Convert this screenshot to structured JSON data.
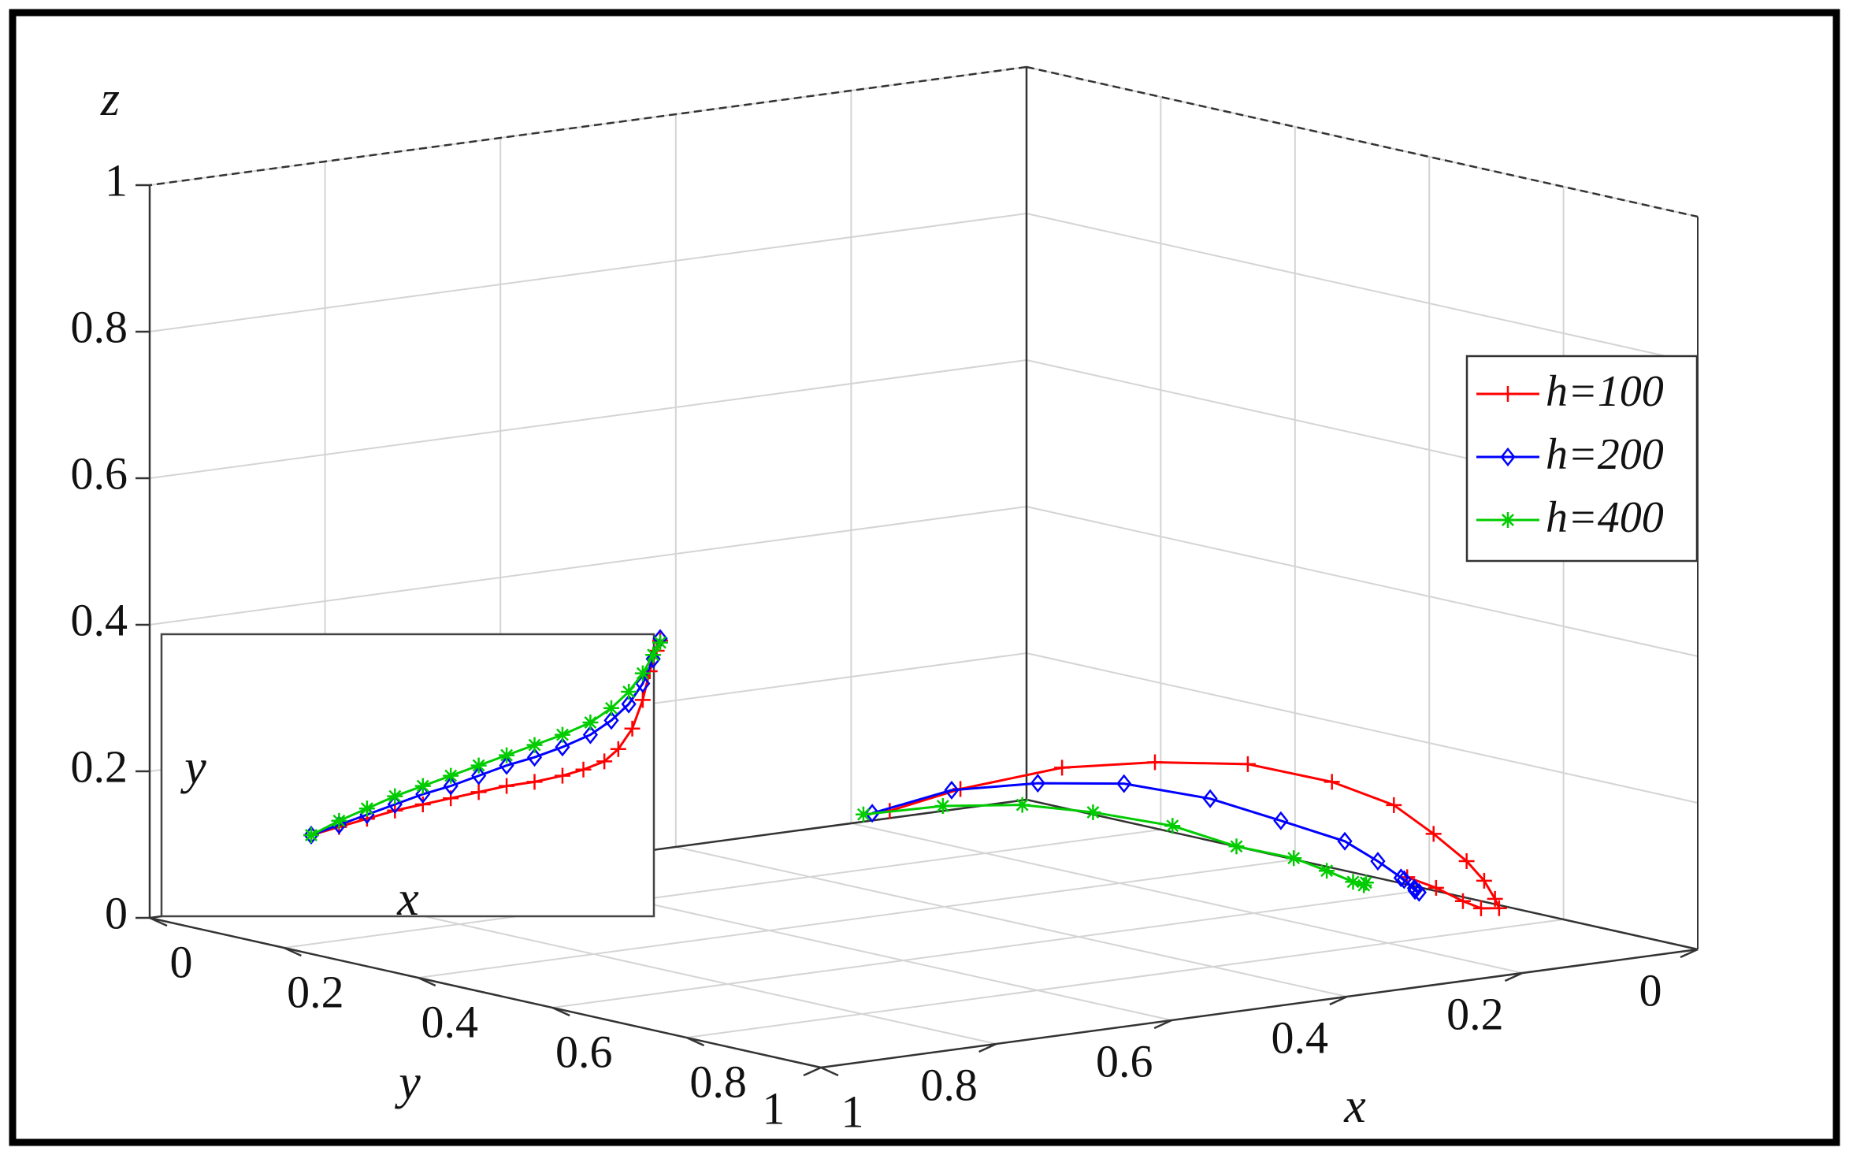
{
  "chart_data": {
    "type": "line",
    "projection": "3d",
    "title": "",
    "xlabel": "x",
    "ylabel": "y",
    "zlabel": "z",
    "xlim": [
      0,
      1
    ],
    "ylim": [
      0,
      1
    ],
    "zlim": [
      0,
      1
    ],
    "grid": true,
    "legend_placement": "right",
    "x_ticks": [
      "0",
      "0.2",
      "0.4",
      "0.6",
      "0.8",
      "1"
    ],
    "y_ticks": [
      "0",
      "0.2",
      "0.4",
      "0.6",
      "0.8",
      "1"
    ],
    "z_ticks": [
      "0",
      "0.2",
      "0.4",
      "0.6",
      "0.8",
      "1"
    ],
    "series": [
      {
        "name": "h=100",
        "color": "#ff0000",
        "marker": "plus",
        "x": [
          0.58,
          0.62,
          0.68,
          0.74,
          0.8,
          0.86,
          0.9,
          0.92,
          0.93,
          0.93,
          0.92,
          0.9,
          0.86,
          0.82,
          0.78,
          0.75
        ],
        "y": [
          0.6,
          0.55,
          0.48,
          0.42,
          0.36,
          0.31,
          0.27,
          0.24,
          0.21,
          0.19,
          0.17,
          0.15,
          0.14,
          0.13,
          0.13,
          0.14
        ],
        "z": [
          0.2,
          0.23,
          0.26,
          0.27,
          0.27,
          0.25,
          0.22,
          0.18,
          0.14,
          0.11,
          0.08,
          0.06,
          0.05,
          0.05,
          0.06,
          0.07
        ]
      },
      {
        "name": "h=200",
        "color": "#0000ff",
        "marker": "diamond",
        "x": [
          0.58,
          0.62,
          0.67,
          0.72,
          0.77,
          0.81,
          0.84,
          0.85,
          0.85,
          0.84,
          0.82,
          0.8,
          0.78
        ],
        "y": [
          0.62,
          0.56,
          0.5,
          0.44,
          0.38,
          0.33,
          0.28,
          0.25,
          0.22,
          0.2,
          0.18,
          0.17,
          0.17
        ],
        "z": [
          0.2,
          0.23,
          0.24,
          0.24,
          0.22,
          0.19,
          0.16,
          0.13,
          0.1,
          0.08,
          0.07,
          0.07,
          0.08
        ]
      },
      {
        "name": "h=400",
        "color": "#00cc00",
        "marker": "star",
        "x": [
          0.58,
          0.62,
          0.66,
          0.7,
          0.74,
          0.77,
          0.79,
          0.8,
          0.8,
          0.79,
          0.78
        ],
        "y": [
          0.63,
          0.57,
          0.51,
          0.46,
          0.4,
          0.35,
          0.3,
          0.27,
          0.24,
          0.22,
          0.21
        ],
        "z": [
          0.2,
          0.21,
          0.21,
          0.2,
          0.18,
          0.15,
          0.13,
          0.11,
          0.09,
          0.08,
          0.08
        ]
      }
    ],
    "inset": {
      "xlabel": "x",
      "ylabel": "y",
      "series": [
        {
          "name": "h=100",
          "x": [
            0.0,
            0.08,
            0.16,
            0.24,
            0.32,
            0.4,
            0.48,
            0.56,
            0.64,
            0.72,
            0.78,
            0.84,
            0.88,
            0.92,
            0.95,
            0.97,
            0.99,
            1.0
          ],
          "y": [
            0.0,
            0.04,
            0.08,
            0.12,
            0.15,
            0.18,
            0.21,
            0.24,
            0.26,
            0.29,
            0.32,
            0.36,
            0.42,
            0.52,
            0.66,
            0.8,
            0.9,
            0.95
          ]
        },
        {
          "name": "h=200",
          "x": [
            0.0,
            0.08,
            0.16,
            0.24,
            0.32,
            0.4,
            0.48,
            0.56,
            0.64,
            0.72,
            0.8,
            0.86,
            0.91,
            0.95,
            0.98,
            1.0
          ],
          "y": [
            0.0,
            0.05,
            0.1,
            0.15,
            0.2,
            0.24,
            0.29,
            0.34,
            0.38,
            0.43,
            0.49,
            0.56,
            0.64,
            0.74,
            0.86,
            0.96
          ]
        },
        {
          "name": "h=400",
          "x": [
            0.0,
            0.08,
            0.16,
            0.24,
            0.32,
            0.4,
            0.48,
            0.56,
            0.64,
            0.72,
            0.8,
            0.86,
            0.91,
            0.95,
            0.98,
            1.0
          ],
          "y": [
            0.0,
            0.07,
            0.13,
            0.19,
            0.24,
            0.29,
            0.34,
            0.39,
            0.44,
            0.49,
            0.55,
            0.62,
            0.7,
            0.79,
            0.88,
            0.94
          ]
        }
      ]
    }
  }
}
